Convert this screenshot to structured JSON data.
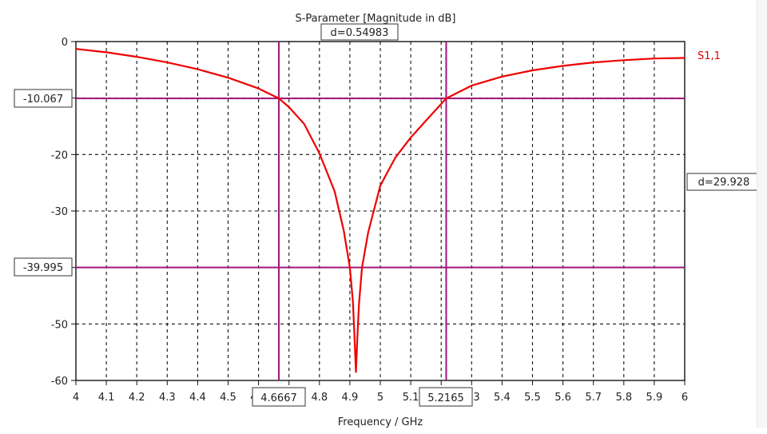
{
  "chart_data": {
    "type": "line",
    "title": "S-Parameter [Magnitude in dB]",
    "xlabel": "Frequency / GHz",
    "ylabel": "",
    "xlim": [
      4,
      6
    ],
    "ylim": [
      -60,
      0
    ],
    "grid": true,
    "x_ticks": [
      "4",
      "4.1",
      "4.2",
      "4.3",
      "4.4",
      "4.5",
      "4.6",
      "4.7",
      "4.8",
      "4.9",
      "5",
      "5.1",
      "5.2",
      "5.3",
      "5.4",
      "5.5",
      "5.6",
      "5.7",
      "5.8",
      "5.9",
      "6"
    ],
    "y_ticks": [
      "0",
      "-10",
      "-20",
      "-30",
      "-40",
      "-50",
      "-60"
    ],
    "legend_position": "right-top",
    "series": [
      {
        "name": "S1,1",
        "color": "#ee0000",
        "x": [
          4.0,
          4.1,
          4.2,
          4.3,
          4.4,
          4.5,
          4.6,
          4.6667,
          4.7,
          4.75,
          4.8,
          4.85,
          4.88,
          4.9,
          4.91,
          4.915,
          4.92,
          4.925,
          4.93,
          4.94,
          4.96,
          5.0,
          5.05,
          5.1,
          5.15,
          5.2165,
          5.3,
          5.4,
          5.5,
          5.6,
          5.7,
          5.8,
          5.9,
          6.0
        ],
        "values": [
          -1.3,
          -1.9,
          -2.7,
          -3.7,
          -4.9,
          -6.4,
          -8.3,
          -10.067,
          -11.6,
          -14.6,
          -19.8,
          -26.5,
          -33.5,
          -40.0,
          -46.0,
          -52.0,
          -58.5,
          -52.0,
          -46.5,
          -40.0,
          -33.8,
          -25.5,
          -20.5,
          -17.0,
          -14.0,
          -10.067,
          -7.8,
          -6.2,
          -5.1,
          -4.3,
          -3.7,
          -3.3,
          -3.0,
          -2.9
        ]
      }
    ],
    "markers": {
      "vertical": [
        4.6667,
        5.2165
      ],
      "horizontal": [
        -10.067,
        -39.995
      ],
      "color": "#a0177a"
    },
    "annotations": [
      {
        "text": "d=0.54983",
        "meaning": "frequency difference between vertical markers"
      },
      {
        "text": "d=29.928",
        "meaning": "magnitude difference between horizontal markers"
      }
    ]
  },
  "labels": {
    "title": "S-Parameter [Magnitude in dB]",
    "xlabel": "Frequency / GHz",
    "legend": "S1,1",
    "marker_x1": "4.6667",
    "marker_x2": "5.2165",
    "marker_y1": "-10.067",
    "marker_y2": "-39.995",
    "delta_x": "d=0.54983",
    "delta_y": "d=29.928"
  }
}
